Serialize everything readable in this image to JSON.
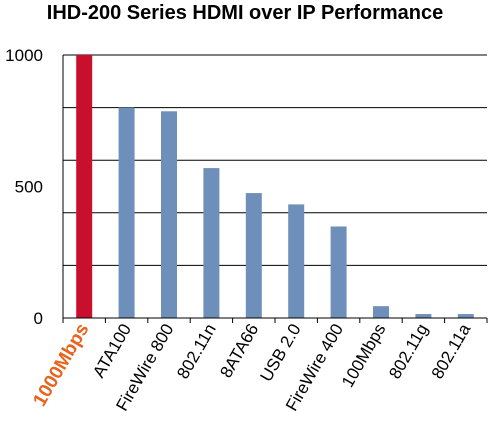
{
  "chart_data": {
    "type": "bar",
    "title": "IHD-200 Series HDMI over IP Performance",
    "categories": [
      "1000Mbps",
      "ATA100",
      "FireWire 800",
      "802.11n",
      "8ATA66",
      "USB 2.0",
      "FireWire 400",
      "100Mbps",
      "802.11g",
      "802.11a"
    ],
    "values": [
      1000,
      800,
      786,
      570,
      475,
      432,
      348,
      45,
      15,
      15
    ],
    "ylim": [
      0,
      1000
    ],
    "yticks": [
      0,
      500,
      1000
    ],
    "grid": true,
    "highlight_index": 0,
    "colors": {
      "bar": "#6f8fbb",
      "highlight": "#c8102e",
      "highlight_label": "#e8641e",
      "grid": "#000000"
    }
  }
}
